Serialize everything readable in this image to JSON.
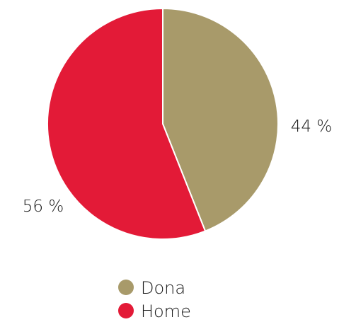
{
  "chart_data": {
    "type": "pie",
    "categories": [
      "Dona",
      "Home"
    ],
    "values": [
      44,
      56
    ],
    "unit": "%",
    "colors": [
      "#a89a6a",
      "#e31a37"
    ],
    "slice_labels": [
      "44 %",
      "56 %"
    ],
    "legend": {
      "placement": "bottom-center",
      "entries": [
        "Dona",
        "Home"
      ]
    },
    "title": "",
    "start_angle_deg": 0,
    "direction": "clockwise"
  }
}
